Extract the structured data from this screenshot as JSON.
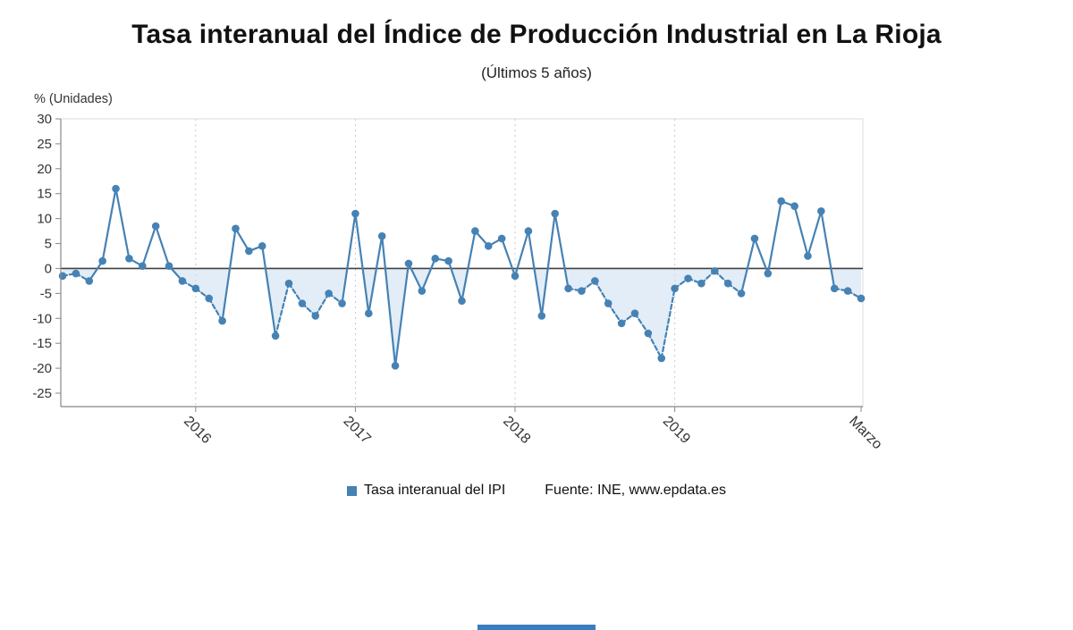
{
  "chart": {
    "title": "Tasa interanual del Índice de Producción Industrial en La Rioja",
    "subtitle": "(Últimos 5 años)",
    "y_axis_title": "% (Unidades)",
    "legend_label": "Tasa interanual del IPI",
    "source": "Fuente: INE, www.epdata.es"
  },
  "colors": {
    "line": "#4682b4",
    "marker": "#4682b4",
    "area_fill": "#d4e4f2",
    "zero_line": "#404040",
    "axis": "#888888",
    "border": "#dcdcdc",
    "grid": "#c8c8c8",
    "tick_text": "#333333",
    "epdata_bar": "#3a7dbf"
  },
  "chart_data": {
    "type": "line",
    "title": "Tasa interanual del Índice de Producción Industrial en La Rioja",
    "subtitle": "(Últimos 5 años)",
    "xlabel": "",
    "ylabel": "% (Unidades)",
    "ylim": [
      -25,
      30
    ],
    "y_ticks": [
      30,
      25,
      20,
      15,
      10,
      5,
      0,
      -5,
      -10,
      -15,
      -20,
      -25
    ],
    "x_ticks": [
      {
        "index": 10,
        "label": "2016",
        "grid": true
      },
      {
        "index": 22,
        "label": "2017",
        "grid": true
      },
      {
        "index": 34,
        "label": "2018",
        "grid": true
      },
      {
        "index": 46,
        "label": "2019",
        "grid": true
      },
      {
        "index": 60,
        "label": "Marzo",
        "grid": false
      }
    ],
    "legend_position": "bottom",
    "grid": "vertical-dashed",
    "style": {
      "negative_segments_dashed": true,
      "fill_between_line_and_zero_when_negative": true
    },
    "series": [
      {
        "name": "Tasa interanual del IPI",
        "values": [
          -1.5,
          -1,
          -2.5,
          1.5,
          16,
          2,
          0.5,
          8.5,
          0.5,
          -2.5,
          -4,
          -6,
          -10.5,
          8,
          3.5,
          4.5,
          -13.5,
          -3,
          -7,
          -9.5,
          -5,
          -7,
          11,
          -9,
          6.5,
          -19.5,
          1,
          -4.5,
          2,
          1.5,
          -6.5,
          7.5,
          4.5,
          6,
          -1.5,
          7.5,
          -9.5,
          11,
          -4,
          -4.5,
          -2.5,
          -7,
          -11,
          -9,
          -13,
          -18,
          -4,
          -2,
          -3,
          -0.5,
          -3,
          -5,
          6,
          -1,
          13.5,
          12.5,
          2.5,
          11.5,
          -4,
          -4.5,
          -6
        ]
      }
    ]
  }
}
